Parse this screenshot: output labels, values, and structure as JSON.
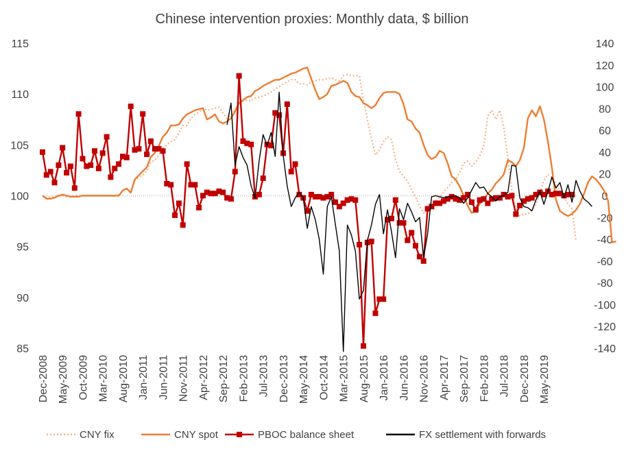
{
  "chart_data": {
    "type": "line",
    "title": "Chinese intervention proxies: Monthly data, $ billion",
    "xlabel": "",
    "ylabel_left": "",
    "ylabel_right": "",
    "left_axis": {
      "min": 85,
      "max": 115,
      "ticks": [
        "85",
        "90",
        "95",
        "100",
        "105",
        "110",
        "115"
      ]
    },
    "right_axis": {
      "min": -140,
      "max": 140,
      "ticks": [
        "-140",
        "-120",
        "-100",
        "-80",
        "-60",
        "-40",
        "-20",
        "0",
        "20",
        "40",
        "60",
        "80",
        "100",
        "120",
        "140"
      ]
    },
    "x_tick_labels": [
      "Dec-2008",
      "May-2009",
      "Oct-2009",
      "Mar-2010",
      "Aug-2010",
      "Jan-2011",
      "Jun-2011",
      "Nov-2011",
      "Apr-2012",
      "Sep-2012",
      "Feb-2013",
      "Jul-2013",
      "Dec-2013",
      "May-2014",
      "Oct-2014",
      "Mar-2015",
      "Aug-2015",
      "Jan-2016",
      "Jun-2016",
      "Nov-2016",
      "Apr-2017",
      "Sep-2017",
      "Feb-2018",
      "Jul-2018",
      "Dec-2018",
      "May-2019"
    ],
    "x_tick_months": [
      0,
      5,
      10,
      15,
      20,
      25,
      30,
      35,
      40,
      45,
      50,
      55,
      60,
      65,
      70,
      75,
      80,
      85,
      90,
      95,
      100,
      105,
      110,
      115,
      120,
      125
    ],
    "legend_position": "bottom",
    "grid": false,
    "series": [
      {
        "name": "CNY fix",
        "axis": "left",
        "style": "dotted",
        "color": "#F4B183",
        "start_month": 0,
        "values": [
          100,
          99.8,
          99.8,
          99.9,
          100,
          100,
          99.9,
          99.9,
          100,
          100,
          100,
          100,
          100,
          100,
          100,
          100,
          100,
          100,
          100,
          100,
          100.5,
          100.7,
          100.3,
          101.5,
          101.8,
          102,
          102.4,
          103.3,
          103.5,
          104,
          104.7,
          105,
          105.3,
          105.5,
          106.2,
          106.9,
          106.9,
          107.6,
          108,
          108.2,
          108.6,
          108.4,
          108.5,
          108.6,
          108.7,
          108.1,
          107.6,
          107.9,
          108.5,
          109,
          109.3,
          109.4,
          109.3,
          109.6,
          109.7,
          109.8,
          110,
          110.2,
          110.5,
          110.7,
          111,
          111.2,
          111.4,
          111.4,
          111,
          111,
          110.9,
          111.2,
          111.3,
          111.4,
          111.4,
          111.5,
          111.6,
          111.4,
          111.3,
          111.8,
          111.9,
          111.8,
          111.8,
          111.8,
          109.4,
          107.5,
          105.6,
          104,
          104.5,
          105.3,
          105.8,
          105.5,
          103.6,
          102.4,
          101.9,
          101.4,
          100.6,
          99.9,
          99,
          98.3,
          98.7,
          99.1,
          99.5,
          99.8,
          100.4,
          100.8,
          101.3,
          101.6,
          102.3,
          103.2,
          103.4,
          102.9,
          103.3,
          103.9,
          104.9,
          107.8,
          108.4,
          107.5,
          108.4,
          106.7,
          103.8,
          100.5,
          98.8,
          98,
          98.2,
          98.2,
          98.6,
          99.1,
          100.3,
          101.5,
          102.1,
          101.8,
          101.2,
          100.4,
          99.8,
          99.2,
          98.7,
          95.5
        ]
      },
      {
        "name": "CNY spot",
        "axis": "left",
        "style": "solid",
        "color": "#ED7D31",
        "start_month": 0,
        "values": [
          100,
          99.7,
          99.7,
          99.8,
          100,
          100.1,
          100,
          99.9,
          99.9,
          99.9,
          100,
          100,
          100,
          100,
          100,
          100,
          100,
          100,
          100,
          100,
          100.5,
          100.7,
          100.3,
          101.6,
          102,
          102.4,
          102.8,
          103.8,
          104.2,
          104.9,
          105.8,
          106.2,
          106.9,
          106.9,
          107,
          107.6,
          108,
          108.2,
          108.4,
          108.5,
          108.6,
          107.5,
          107.7,
          108,
          107.3,
          107.1,
          107.3,
          107.6,
          108.3,
          109.1,
          109.4,
          109.7,
          109.8,
          110.3,
          110.5,
          110.8,
          111,
          111.2,
          111.4,
          111.4,
          111.6,
          111.8,
          112,
          112.1,
          112.3,
          112.5,
          112.6,
          111.5,
          110.4,
          109.5,
          109.7,
          110,
          110.8,
          110.9,
          111.1,
          111.3,
          111.1,
          110.2,
          109.8,
          109.7,
          109.1,
          108.9,
          108.6,
          108.9,
          109.6,
          110.1,
          110.2,
          110.2,
          110.2,
          110,
          109,
          107.5,
          107.3,
          106.6,
          106.2,
          105,
          104,
          103.6,
          103.8,
          104.4,
          104.2,
          103.2,
          101.9,
          101.6,
          100.9,
          100,
          99,
          98.3,
          98.5,
          99.2,
          99.6,
          100.2,
          100.6,
          101.2,
          101.6,
          102.1,
          103.5,
          103.3,
          102.9,
          103.5,
          104.7,
          107.6,
          108.4,
          107.8,
          108.8,
          107.5,
          105.3,
          102.7,
          99.6,
          98.5,
          98.2,
          98,
          98.2,
          98.6,
          99.2,
          100.2,
          101.3,
          101.9,
          101.6,
          101.1,
          100.5,
          99.5,
          95.4,
          95.5
        ]
      },
      {
        "name": "PBOC balance sheet",
        "axis": "right",
        "style": "solid",
        "color": "#C00000",
        "marker": "square",
        "start_month": 0,
        "values": [
          40,
          19,
          22,
          12,
          28,
          44,
          21,
          27,
          7,
          75,
          34,
          27,
          28,
          41,
          25,
          39,
          54,
          17,
          25,
          29,
          36,
          35,
          82,
          42,
          43,
          75,
          38,
          50,
          43,
          43,
          41,
          11,
          10,
          -18,
          -7,
          -27,
          29,
          10,
          10,
          -11,
          0,
          3,
          2,
          2,
          4,
          3,
          -2,
          -3,
          22,
          110,
          50,
          48,
          47,
          -1,
          1,
          16,
          47,
          46,
          76,
          74,
          39,
          84,
          22,
          29,
          1,
          -2,
          -14,
          1,
          -1,
          -1,
          -2,
          -1,
          1,
          -6,
          -10,
          -7,
          -4,
          -3,
          -4,
          -45,
          -138,
          -43,
          -42,
          -108,
          -95,
          -95,
          -22,
          -21,
          -4,
          -25,
          -25,
          -41,
          -34,
          -46,
          -56,
          -60,
          -12,
          -10,
          -7,
          -7,
          -5,
          -3,
          -1,
          -3,
          -4,
          -2,
          1,
          -6,
          -13,
          -4,
          -3,
          -7,
          -3,
          -2,
          -2,
          1,
          -1,
          0,
          -17,
          -9,
          -5,
          -3,
          -2,
          1,
          3,
          1,
          4,
          1,
          2,
          2,
          0,
          1,
          1
        ]
      },
      {
        "name": "FX settlement with forwards",
        "axis": "right",
        "style": "solid",
        "color": "#000000",
        "start_month": 46,
        "values": [
          65,
          85,
          28,
          45,
          35,
          28,
          9,
          -2,
          32,
          56,
          46,
          58,
          36,
          95,
          37,
          9,
          -10,
          -2,
          3,
          -2,
          -30,
          -10,
          -22,
          -40,
          -72,
          -10,
          -1,
          -26,
          -51,
          -143,
          -27,
          -36,
          -51,
          -95,
          -87,
          -41,
          -27,
          -8,
          1,
          -35,
          -13,
          -33,
          -57,
          -12,
          -22,
          -7,
          -15,
          -24,
          -20,
          -57,
          -35,
          -1,
          0,
          -1,
          -2,
          -1,
          -1,
          0,
          -2,
          -7,
          -2,
          5,
          12,
          7,
          8,
          2,
          -1,
          -5,
          -1,
          0,
          3,
          28,
          27,
          -2,
          -10,
          -11,
          -14,
          -4,
          4,
          -8,
          4,
          17,
          7,
          12,
          -2,
          10,
          -6,
          14,
          4,
          -3,
          -6,
          -10
        ]
      }
    ]
  }
}
